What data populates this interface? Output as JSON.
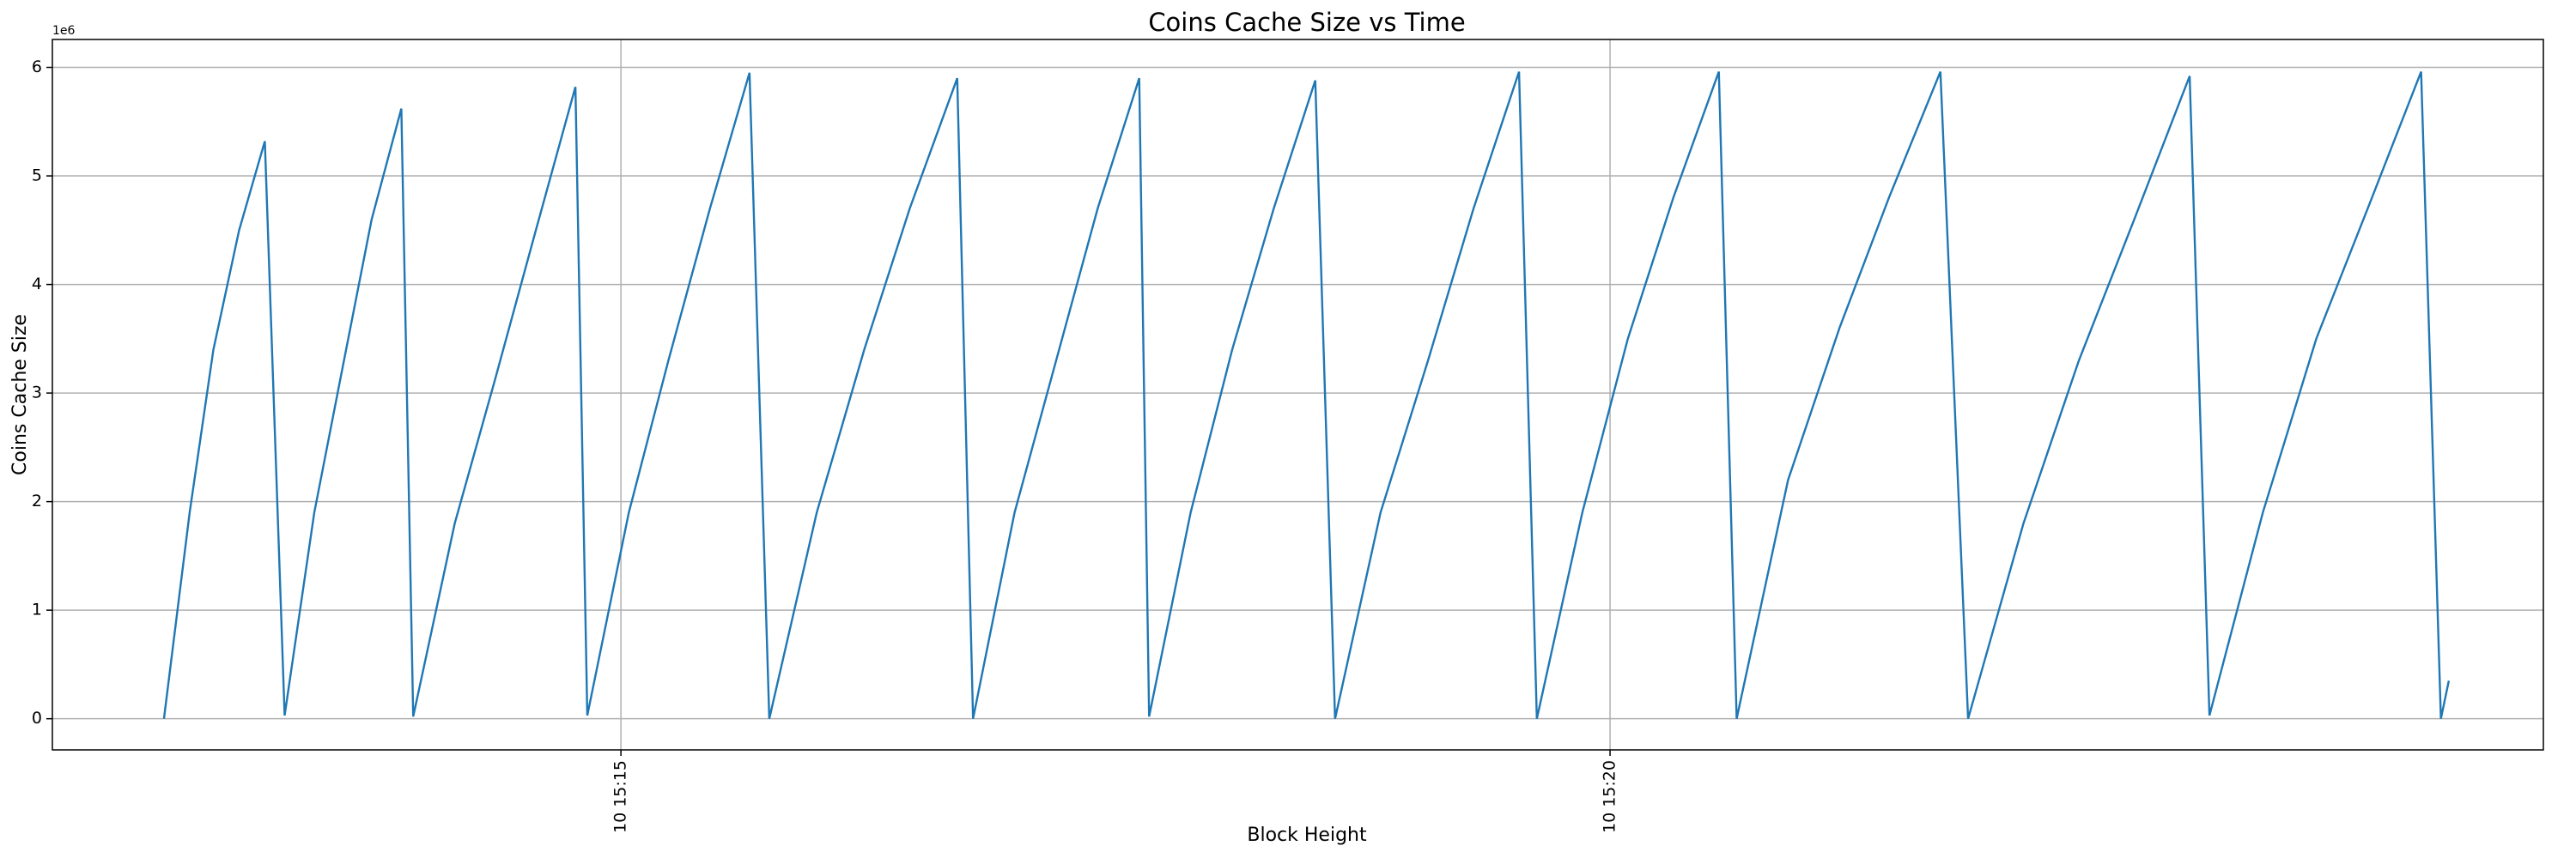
{
  "chart_data": {
    "type": "line",
    "title": "Coins Cache Size vs Time",
    "x_label": "Block Height",
    "y_label": "Coins Cache Size",
    "y_offset_label": "1e6",
    "x": [
      12.69,
      12.82,
      12.94,
      13.07,
      13.2,
      13.3,
      13.45,
      13.6,
      13.74,
      13.89,
      13.95,
      14.16,
      14.36,
      14.57,
      14.77,
      14.83,
      15.04,
      15.24,
      15.45,
      15.65,
      15.75,
      15.99,
      16.23,
      16.46,
      16.7,
      16.78,
      16.99,
      17.2,
      17.41,
      17.62,
      17.67,
      17.88,
      18.09,
      18.3,
      18.51,
      18.61,
      18.84,
      19.08,
      19.31,
      19.54,
      19.63,
      19.86,
      20.09,
      20.32,
      20.55,
      20.64,
      20.9,
      21.16,
      21.41,
      21.67,
      21.81,
      22.09,
      22.37,
      22.65,
      22.93,
      23.03,
      23.3,
      23.57,
      23.83,
      24.1,
      24.2,
      24.24
    ],
    "series": [
      {
        "name": "Coins Cache Size",
        "color": "#1f77b4",
        "values": [
          0,
          1.9,
          3.4,
          4.5,
          5.32,
          0.03,
          1.9,
          3.3,
          4.6,
          5.62,
          0.02,
          1.8,
          3.1,
          4.5,
          5.82,
          0.03,
          1.9,
          3.3,
          4.7,
          5.95,
          0,
          1.9,
          3.4,
          4.7,
          5.9,
          0,
          1.9,
          3.3,
          4.7,
          5.9,
          0.02,
          1.9,
          3.4,
          4.7,
          5.88,
          0,
          1.9,
          3.3,
          4.7,
          5.96,
          0,
          1.9,
          3.5,
          4.8,
          5.96,
          0,
          2.2,
          3.6,
          4.8,
          5.96,
          0,
          1.8,
          3.3,
          4.6,
          5.92,
          0.03,
          1.9,
          3.5,
          4.7,
          5.96,
          0,
          0.35
        ]
      }
    ],
    "xlim": [
      12.126,
      24.718
    ],
    "ylim": [
      -0.287,
      6.257
    ],
    "xticks": [
      {
        "value": 15,
        "label": "10 15:15"
      },
      {
        "value": 20,
        "label": "10 15:20"
      }
    ],
    "yticks": [
      0,
      1,
      2,
      3,
      4,
      5,
      6
    ],
    "grid": true
  }
}
